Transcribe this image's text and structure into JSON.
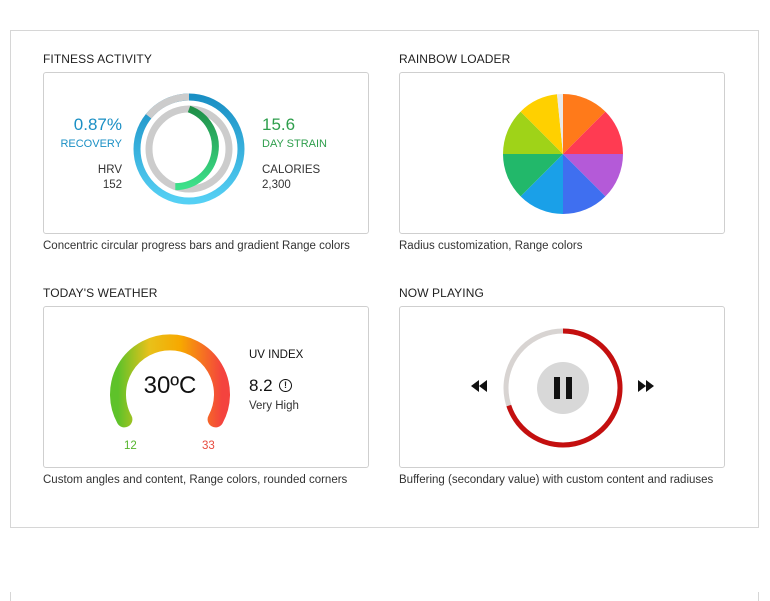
{
  "fitness": {
    "title": "FITNESS ACTIVITY",
    "recovery_value": "0.87%",
    "recovery_label": "RECOVERY",
    "hrv_label": "HRV",
    "hrv_value": "152",
    "strain_value": "15.6",
    "strain_label": "DAY STRAIN",
    "calories_label": "CALORIES",
    "calories_value": "2,300",
    "caption": "Concentric circular progress bars and gradient Range colors",
    "recovery_color": "#1a8fc4",
    "strain_color": "#2e9e4c"
  },
  "rainbow": {
    "title": "RAINBOW LOADER",
    "caption": "Radius customization, Range colors"
  },
  "weather": {
    "title": "TODAY'S WEATHER",
    "temperature": "30ºC",
    "uv_label": "UV INDEX",
    "uv_value": "8.2",
    "uv_level": "Very High",
    "min_label": "12",
    "max_label": "33",
    "caption": "Custom angles and content, Range colors, rounded corners",
    "min_color": "#55b52c",
    "max_color": "#e84a3e"
  },
  "player": {
    "title": "NOW PLAYING",
    "caption": "Buffering (secondary value) with custom content and radiuses",
    "progress_color": "#c40f0f"
  }
}
